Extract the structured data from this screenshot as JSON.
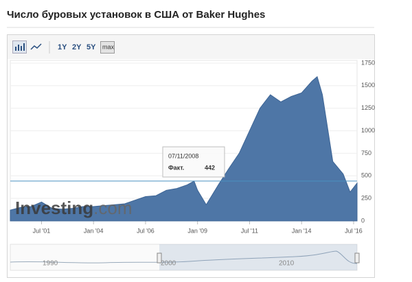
{
  "chart_data": {
    "type": "area",
    "title": "Число буровых установок в США от Baker Hughes",
    "buttons": [
      "1Y",
      "2Y",
      "5Y",
      "max"
    ],
    "watermark": [
      "Investing",
      ".com"
    ],
    "x": [
      "2000-01",
      "2000-07",
      "2001-01",
      "2001-07",
      "2002-01",
      "2002-07",
      "2003-01",
      "2003-07",
      "2004-01",
      "2004-07",
      "2005-01",
      "2005-07",
      "2006-01",
      "2006-07",
      "2007-01",
      "2007-07",
      "2008-01",
      "2008-07",
      "2008-11",
      "2009-01",
      "2009-06",
      "2010-01",
      "2010-07",
      "2011-01",
      "2011-07",
      "2012-01",
      "2012-07",
      "2013-01",
      "2013-07",
      "2014-01",
      "2014-07",
      "2014-10",
      "2015-01",
      "2015-07",
      "2016-01",
      "2016-05",
      "2016-09"
    ],
    "series": [
      {
        "name": "Факт.",
        "color": "#4e76a6",
        "values": [
          120,
          150,
          160,
          210,
          140,
          130,
          140,
          160,
          160,
          170,
          180,
          190,
          230,
          270,
          280,
          340,
          360,
          400,
          442,
          340,
          180,
          400,
          580,
          750,
          1000,
          1250,
          1400,
          1320,
          1380,
          1420,
          1550,
          1600,
          1400,
          660,
          520,
          320,
          420
        ]
      }
    ],
    "xlim": [
      "2000-01",
      "2016-09"
    ],
    "xticks": [
      {
        "value": "2001-07",
        "label": "Jul '01"
      },
      {
        "value": "2004-01",
        "label": "Jan '04"
      },
      {
        "value": "2006-07",
        "label": "Jul '06"
      },
      {
        "value": "2009-01",
        "label": "Jan '09"
      },
      {
        "value": "2011-07",
        "label": "Jul '11"
      },
      {
        "value": "2014-01",
        "label": "Jan '14"
      },
      {
        "value": "2016-07",
        "label": "Jul '16"
      }
    ],
    "ylim": [
      0,
      1750
    ],
    "yticks": [
      0,
      250,
      500,
      750,
      1000,
      1250,
      1500,
      1750
    ],
    "tooltip": {
      "date": "07/11/2008",
      "label": "Факт.",
      "value": 442
    },
    "navigator_labels": [
      "1990",
      "2000",
      "2010"
    ]
  }
}
